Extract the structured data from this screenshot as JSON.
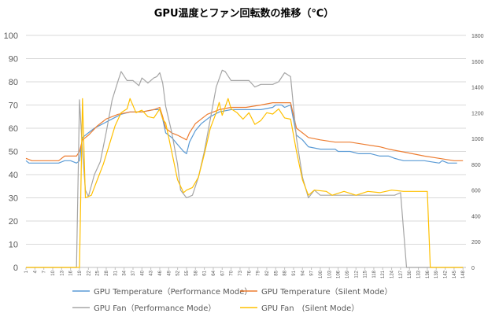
{
  "chart_data": {
    "type": "line",
    "title": "GPU温度とファン回転数の推移（℃）",
    "xlabel": "",
    "ylabel": "",
    "ylim": [
      0,
      100
    ],
    "y_ticks": [
      0,
      10,
      20,
      30,
      40,
      50,
      60,
      70,
      80,
      90,
      100
    ],
    "y2lim": [
      0,
      1800
    ],
    "y2_ticks": [
      0,
      200,
      400,
      600,
      800,
      1000,
      1200,
      1400,
      1600,
      1800
    ],
    "x_ticks": [
      1,
      4,
      7,
      10,
      13,
      16,
      19,
      22,
      25,
      28,
      31,
      34,
      37,
      40,
      43,
      46,
      49,
      52,
      55,
      58,
      61,
      64,
      67,
      70,
      73,
      76,
      79,
      82,
      85,
      88,
      91,
      94,
      97,
      100,
      103,
      106,
      109,
      112,
      115,
      118,
      121,
      124,
      127,
      130,
      133,
      136,
      139,
      142,
      145,
      148
    ],
    "grid": true,
    "legend_position": "bottom",
    "series": [
      {
        "name": "GPU Temperature（Performance Mode）",
        "axis": "left",
        "color": "#5B9BD5",
        "points": [
          [
            1,
            46
          ],
          [
            2,
            45
          ],
          [
            10,
            45
          ],
          [
            12,
            45
          ],
          [
            14,
            46
          ],
          [
            16,
            46
          ],
          [
            18,
            45
          ],
          [
            19,
            46
          ],
          [
            20,
            56
          ],
          [
            22,
            58
          ],
          [
            24,
            60
          ],
          [
            27,
            62
          ],
          [
            30,
            64
          ],
          [
            33,
            66
          ],
          [
            36,
            67
          ],
          [
            40,
            67
          ],
          [
            44,
            68
          ],
          [
            46,
            68
          ],
          [
            47,
            64
          ],
          [
            48,
            58
          ],
          [
            50,
            56
          ],
          [
            52,
            53
          ],
          [
            54,
            50
          ],
          [
            55,
            49
          ],
          [
            56,
            54
          ],
          [
            58,
            59
          ],
          [
            60,
            62
          ],
          [
            63,
            65
          ],
          [
            66,
            67
          ],
          [
            70,
            68
          ],
          [
            75,
            68
          ],
          [
            80,
            68
          ],
          [
            84,
            69
          ],
          [
            85,
            70
          ],
          [
            87,
            70
          ],
          [
            88,
            69
          ],
          [
            90,
            70
          ],
          [
            92,
            57
          ],
          [
            94,
            55
          ],
          [
            96,
            52
          ],
          [
            100,
            51
          ],
          [
            105,
            51
          ],
          [
            106,
            50
          ],
          [
            110,
            50
          ],
          [
            113,
            49
          ],
          [
            117,
            49
          ],
          [
            120,
            48
          ],
          [
            123,
            48
          ],
          [
            125,
            47
          ],
          [
            128,
            46
          ],
          [
            135,
            46
          ],
          [
            140,
            45
          ],
          [
            141,
            46
          ],
          [
            143,
            45
          ],
          [
            146,
            45
          ]
        ]
      },
      {
        "name": "GPU Temperature（Silent Mode）",
        "axis": "left",
        "color": "#ED7D31",
        "points": [
          [
            1,
            47
          ],
          [
            3,
            46
          ],
          [
            8,
            46
          ],
          [
            12,
            46
          ],
          [
            14,
            48
          ],
          [
            18,
            48
          ],
          [
            19,
            50
          ],
          [
            20,
            55
          ],
          [
            22,
            57
          ],
          [
            25,
            61
          ],
          [
            28,
            64
          ],
          [
            32,
            66
          ],
          [
            36,
            67
          ],
          [
            40,
            67
          ],
          [
            44,
            68
          ],
          [
            46,
            69
          ],
          [
            47,
            65
          ],
          [
            48,
            60
          ],
          [
            50,
            58
          ],
          [
            52,
            57
          ],
          [
            55,
            55
          ],
          [
            56,
            58
          ],
          [
            58,
            62
          ],
          [
            62,
            66
          ],
          [
            66,
            68
          ],
          [
            70,
            69
          ],
          [
            75,
            69
          ],
          [
            80,
            70
          ],
          [
            84,
            71
          ],
          [
            88,
            71
          ],
          [
            90,
            71
          ],
          [
            92,
            60
          ],
          [
            94,
            58
          ],
          [
            96,
            56
          ],
          [
            100,
            55
          ],
          [
            105,
            54
          ],
          [
            110,
            54
          ],
          [
            115,
            53
          ],
          [
            120,
            52
          ],
          [
            123,
            51
          ],
          [
            127,
            50
          ],
          [
            131,
            49
          ],
          [
            135,
            48
          ],
          [
            140,
            47
          ],
          [
            145,
            46
          ],
          [
            148,
            46
          ]
        ]
      },
      {
        "name": "GPU Fan（Performance Mode）",
        "axis": "right",
        "color": "#A5A5A5",
        "points": [
          [
            1,
            0
          ],
          [
            18,
            0
          ],
          [
            19,
            1300
          ],
          [
            20,
            900
          ],
          [
            21,
            600
          ],
          [
            22,
            550
          ],
          [
            24,
            720
          ],
          [
            26,
            820
          ],
          [
            28,
            1050
          ],
          [
            30,
            1300
          ],
          [
            32,
            1450
          ],
          [
            33,
            1520
          ],
          [
            35,
            1450
          ],
          [
            37,
            1450
          ],
          [
            39,
            1410
          ],
          [
            40,
            1470
          ],
          [
            42,
            1430
          ],
          [
            44,
            1470
          ],
          [
            45,
            1480
          ],
          [
            46,
            1510
          ],
          [
            47,
            1430
          ],
          [
            48,
            1250
          ],
          [
            50,
            1050
          ],
          [
            52,
            800
          ],
          [
            53,
            600
          ],
          [
            55,
            540
          ],
          [
            57,
            560
          ],
          [
            59,
            700
          ],
          [
            61,
            900
          ],
          [
            63,
            1150
          ],
          [
            65,
            1400
          ],
          [
            67,
            1530
          ],
          [
            68,
            1520
          ],
          [
            70,
            1450
          ],
          [
            74,
            1450
          ],
          [
            76,
            1450
          ],
          [
            78,
            1400
          ],
          [
            80,
            1420
          ],
          [
            84,
            1420
          ],
          [
            86,
            1440
          ],
          [
            88,
            1510
          ],
          [
            90,
            1480
          ],
          [
            92,
            1000
          ],
          [
            94,
            700
          ],
          [
            96,
            540
          ],
          [
            98,
            600
          ],
          [
            100,
            560
          ],
          [
            104,
            560
          ],
          [
            110,
            560
          ],
          [
            120,
            560
          ],
          [
            125,
            560
          ],
          [
            127,
            580
          ],
          [
            129,
            0
          ],
          [
            148,
            0
          ]
        ]
      },
      {
        "name": "GPU Fan　(Silent Mode）",
        "axis": "right",
        "color": "#FFC000",
        "points": [
          [
            1,
            0
          ],
          [
            19,
            0
          ],
          [
            20,
            1310
          ],
          [
            21,
            540
          ],
          [
            23,
            560
          ],
          [
            25,
            680
          ],
          [
            27,
            800
          ],
          [
            29,
            950
          ],
          [
            31,
            1100
          ],
          [
            33,
            1200
          ],
          [
            35,
            1230
          ],
          [
            36,
            1310
          ],
          [
            38,
            1200
          ],
          [
            40,
            1220
          ],
          [
            42,
            1170
          ],
          [
            44,
            1160
          ],
          [
            46,
            1230
          ],
          [
            47,
            1150
          ],
          [
            48,
            1120
          ],
          [
            50,
            900
          ],
          [
            52,
            680
          ],
          [
            54,
            580
          ],
          [
            55,
            600
          ],
          [
            57,
            620
          ],
          [
            59,
            700
          ],
          [
            61,
            880
          ],
          [
            63,
            1080
          ],
          [
            65,
            1200
          ],
          [
            66,
            1280
          ],
          [
            67,
            1180
          ],
          [
            69,
            1310
          ],
          [
            70,
            1230
          ],
          [
            72,
            1200
          ],
          [
            74,
            1150
          ],
          [
            76,
            1200
          ],
          [
            78,
            1110
          ],
          [
            80,
            1140
          ],
          [
            82,
            1200
          ],
          [
            84,
            1190
          ],
          [
            86,
            1230
          ],
          [
            88,
            1160
          ],
          [
            90,
            1150
          ],
          [
            92,
            900
          ],
          [
            94,
            680
          ],
          [
            96,
            560
          ],
          [
            98,
            600
          ],
          [
            102,
            590
          ],
          [
            104,
            560
          ],
          [
            108,
            590
          ],
          [
            112,
            560
          ],
          [
            116,
            590
          ],
          [
            120,
            580
          ],
          [
            124,
            600
          ],
          [
            128,
            590
          ],
          [
            132,
            590
          ],
          [
            136,
            590
          ],
          [
            137,
            0
          ],
          [
            148,
            0
          ]
        ]
      }
    ]
  }
}
